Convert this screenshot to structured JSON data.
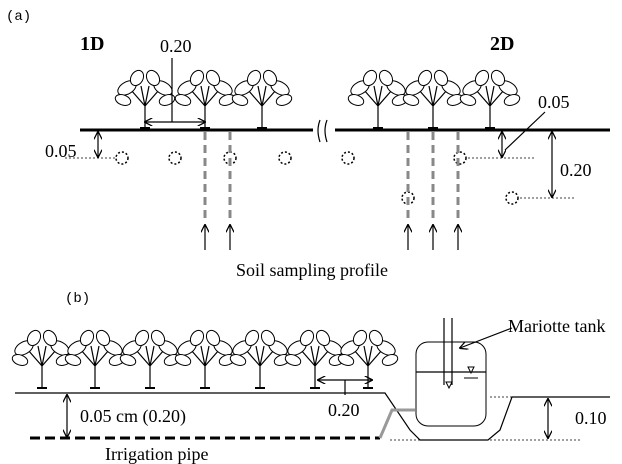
{
  "panel_a": {
    "label": "(a)",
    "left_label": "1D",
    "right_label": "2D",
    "spacing": "0.20",
    "depth_left": "0.05",
    "depth_right_small": "0.05",
    "depth_right_large": "0.20",
    "caption": "Soil sampling profile"
  },
  "panel_b": {
    "label": "(b)",
    "tank": "Mariotte tank",
    "spacing": "0.20",
    "depth": "0.05 cm  (0.20)",
    "tank_depth": "0.10",
    "pipe": "Irrigation pipe"
  }
}
